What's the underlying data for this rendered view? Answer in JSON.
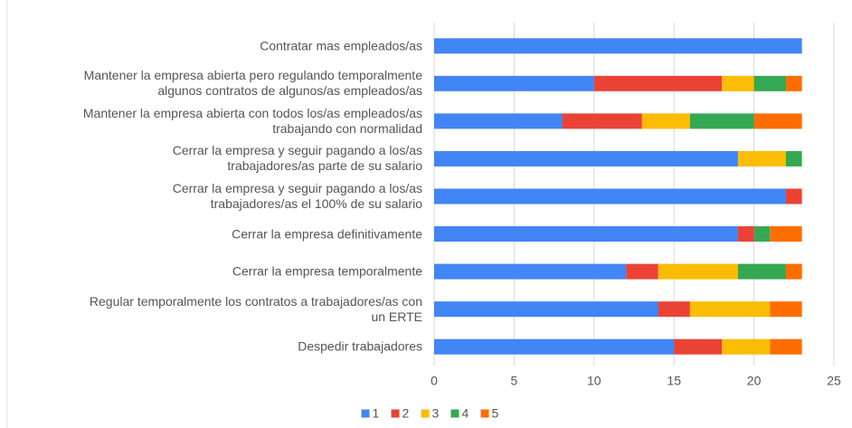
{
  "chart_data": {
    "type": "stacked_barh",
    "categories": [
      "Contratar mas empleados/as",
      "Mantener la empresa abierta pero regulando temporalmente\nalgunos contratos de algunos/as empleados/as",
      "Mantener la empresa abierta con todos los/as empleados/as\ntrabajando con normalidad",
      "Cerrar la empresa y seguir pagando a los/as\ntrabajadores/as parte de su salario",
      "Cerrar la empresa y seguir pagando a los/as\ntrabajadores/as el 100% de su salario",
      "Cerrar la empresa definitivamente",
      "Cerrar la empresa temporalmente",
      "Regular temporalmente los contratos a trabajadores/as con\nun ERTE",
      "Despedir trabajadores"
    ],
    "series": [
      {
        "name": "1",
        "color": "#4285f4",
        "values": [
          23,
          10,
          8,
          19,
          22,
          19,
          12,
          14,
          15
        ]
      },
      {
        "name": "2",
        "color": "#ea4335",
        "values": [
          0,
          8,
          5,
          0,
          1,
          1,
          2,
          2,
          3
        ]
      },
      {
        "name": "3",
        "color": "#fbbc04",
        "values": [
          0,
          2,
          3,
          3,
          0,
          0,
          5,
          5,
          3
        ]
      },
      {
        "name": "4",
        "color": "#34a853",
        "values": [
          0,
          2,
          4,
          1,
          0,
          1,
          3,
          0,
          0
        ]
      },
      {
        "name": "5",
        "color": "#ff6d01",
        "values": [
          0,
          1,
          3,
          0,
          0,
          2,
          1,
          2,
          2
        ]
      }
    ],
    "xlim": [
      0,
      25
    ],
    "xticks": [
      0,
      5,
      10,
      15,
      20,
      25
    ],
    "grid": true,
    "legend": "bottom"
  }
}
